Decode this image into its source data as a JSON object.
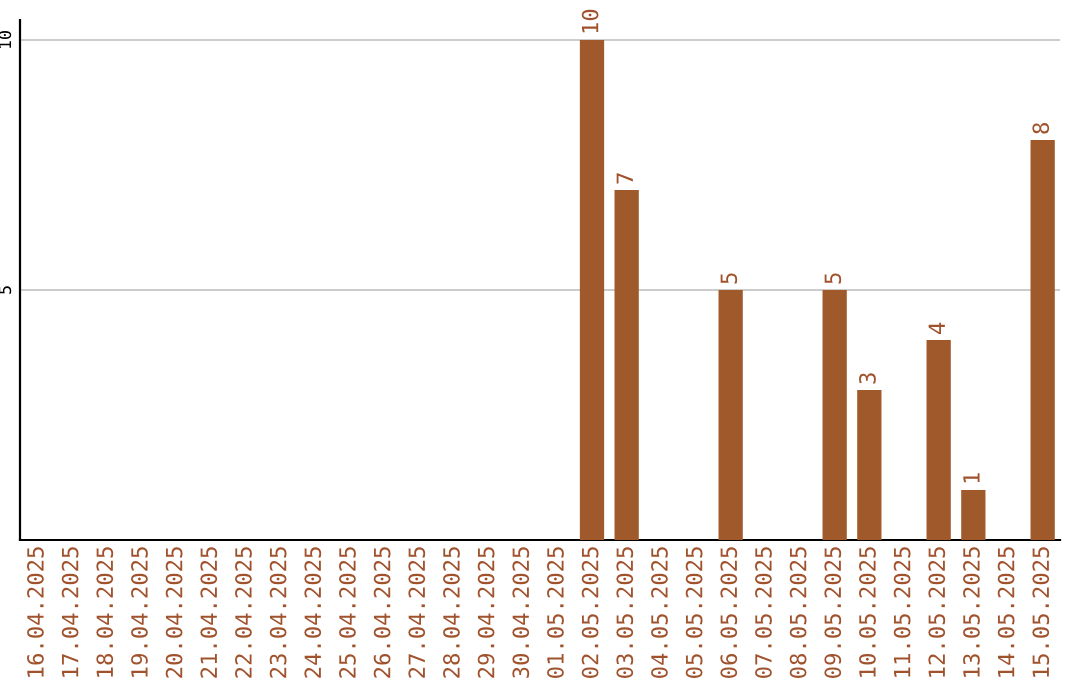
{
  "chart_data": {
    "type": "bar",
    "categories": [
      "16.04.2025",
      "17.04.2025",
      "18.04.2025",
      "19.04.2025",
      "20.04.2025",
      "21.04.2025",
      "22.04.2025",
      "23.04.2025",
      "24.04.2025",
      "25.04.2025",
      "26.04.2025",
      "27.04.2025",
      "28.04.2025",
      "29.04.2025",
      "30.04.2025",
      "01.05.2025",
      "02.05.2025",
      "03.05.2025",
      "04.05.2025",
      "05.05.2025",
      "06.05.2025",
      "07.05.2025",
      "08.05.2025",
      "09.05.2025",
      "10.05.2025",
      "11.05.2025",
      "12.05.2025",
      "13.05.2025",
      "14.05.2025",
      "15.05.2025"
    ],
    "values": [
      0,
      0,
      0,
      0,
      0,
      0,
      0,
      0,
      0,
      0,
      0,
      0,
      0,
      0,
      0,
      0,
      10,
      7,
      0,
      0,
      5,
      0,
      0,
      5,
      3,
      0,
      4,
      1,
      0,
      8
    ],
    "value_labels": [
      null,
      null,
      null,
      null,
      null,
      null,
      null,
      null,
      null,
      null,
      null,
      null,
      null,
      null,
      null,
      null,
      "10",
      "7",
      null,
      null,
      "5",
      null,
      null,
      "5",
      "3",
      null,
      "4",
      "1",
      null,
      "8"
    ],
    "color": "#a0592a",
    "ylim": [
      0,
      10.4
    ],
    "yticks": [
      5,
      10
    ],
    "grid": "y"
  }
}
